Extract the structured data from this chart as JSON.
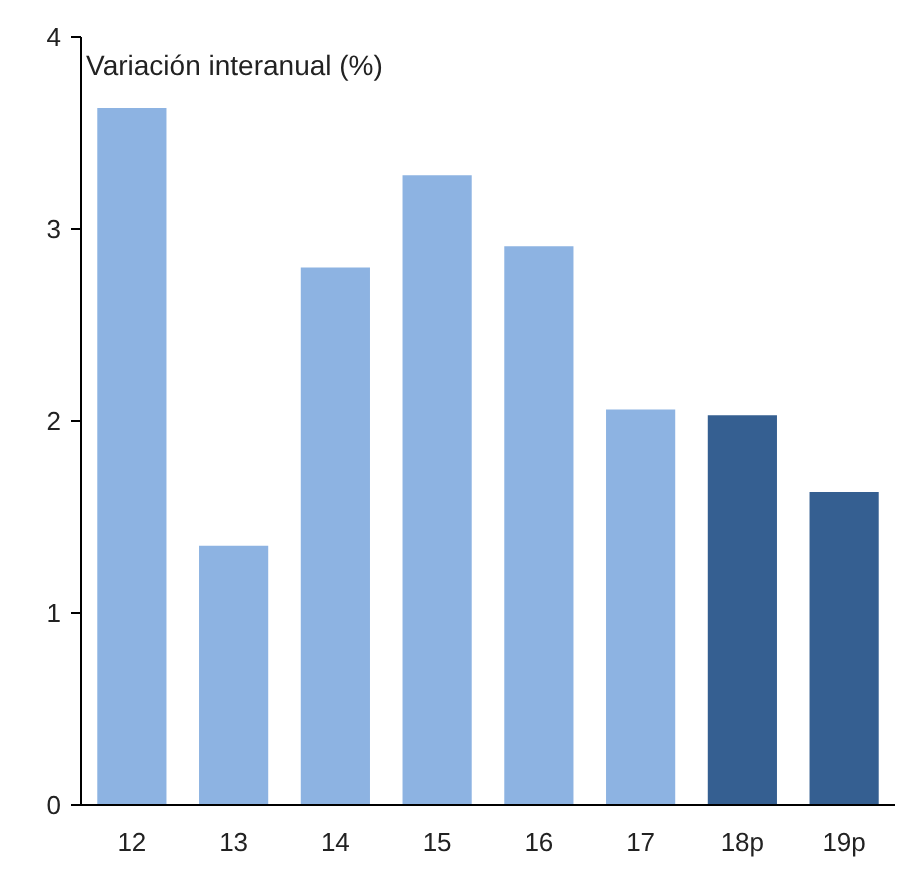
{
  "chart_data": {
    "type": "bar",
    "ylabel": "Variación interanual (%)",
    "categories": [
      "12",
      "13",
      "14",
      "15",
      "16",
      "17",
      "18p",
      "19p"
    ],
    "values": [
      3.63,
      1.35,
      2.8,
      3.28,
      2.91,
      2.06,
      2.03,
      1.63
    ],
    "colors": [
      "#8db3e2",
      "#8db3e2",
      "#8db3e2",
      "#8db3e2",
      "#8db3e2",
      "#8db3e2",
      "#355f91",
      "#355f91"
    ],
    "ylim": [
      0,
      4
    ],
    "yticks": [
      0,
      1,
      2,
      3,
      4
    ],
    "grid": false
  }
}
